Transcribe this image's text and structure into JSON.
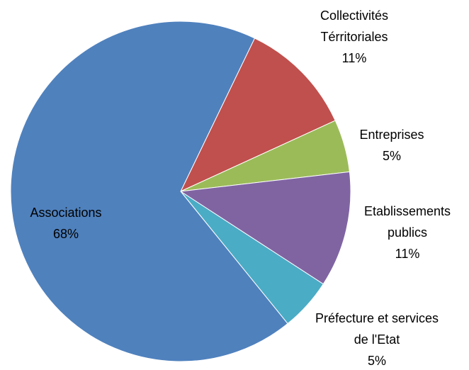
{
  "chart_data": {
    "type": "pie",
    "categories": [
      "Collectivités Térritoriales",
      "Entreprises",
      "Etablissements publics",
      "Préfecture et services de l'Etat",
      "Associations"
    ],
    "values": [
      11,
      5,
      11,
      5,
      68
    ],
    "value_labels": [
      "11%",
      "5%",
      "11%",
      "5%",
      "68%"
    ],
    "colors": [
      "#c0504d",
      "#9bbb59",
      "#8064a2",
      "#4bacc6",
      "#4f81bd"
    ]
  }
}
